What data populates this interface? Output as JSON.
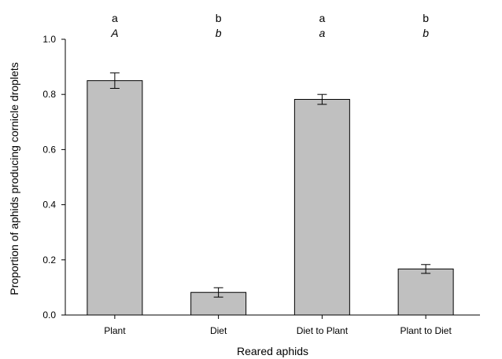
{
  "chart_data": {
    "type": "bar",
    "title": "",
    "xlabel": "Reared aphids",
    "ylabel": "Proportion of aphids producing cornicle droplets",
    "ylim": [
      0,
      1.0
    ],
    "yticks": [
      "0.0",
      "0.2",
      "0.4",
      "0.6",
      "0.8",
      "1.0"
    ],
    "categories": [
      "Plant",
      "Diet",
      "Diet to Plant",
      "Plant to Diet"
    ],
    "values": [
      0.85,
      0.082,
      0.782,
      0.167
    ],
    "errors": [
      0.028,
      0.017,
      0.018,
      0.016
    ],
    "letters_top": [
      "a",
      "b",
      "a",
      "b"
    ],
    "letters_bottom": [
      "A",
      "b",
      "a",
      "b"
    ],
    "bar_color": "#c0c0c0",
    "grid": false
  }
}
